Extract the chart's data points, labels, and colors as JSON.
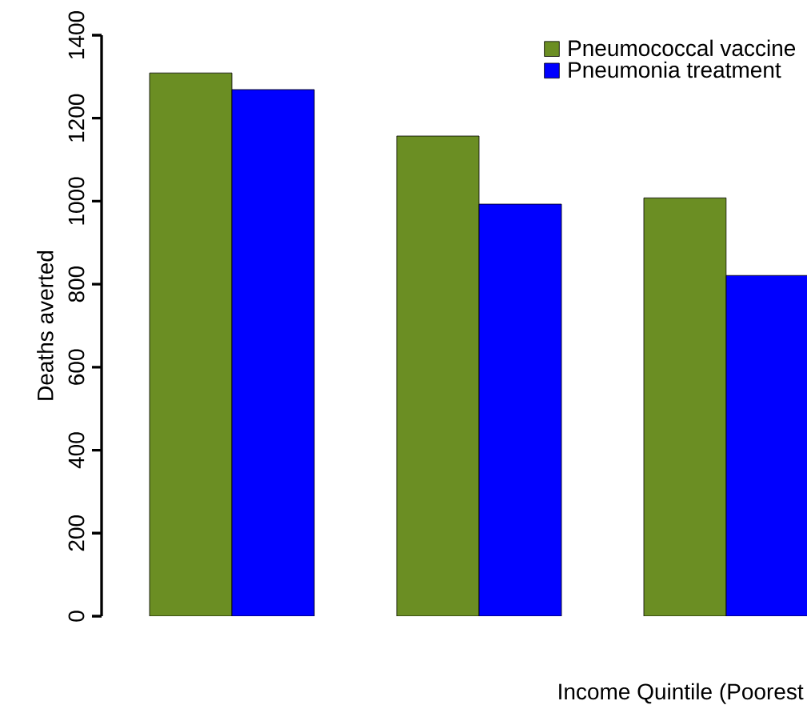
{
  "chart_data": {
    "type": "bar",
    "xlabel": "Income Quintile (Poorest",
    "ylabel": "Deaths averted",
    "categories": [
      null,
      null,
      null
    ],
    "series": [
      {
        "name": "Pneumococcal vaccine",
        "color": "#6b8e23",
        "values": [
          1309,
          1157,
          1008
        ]
      },
      {
        "name": "Pneumonia treatment",
        "color": "#0000ff",
        "values": [
          1269,
          993,
          821
        ]
      }
    ],
    "ylim": [
      0,
      1400
    ],
    "yticks": [
      0,
      200,
      400,
      600,
      800,
      1000,
      1200,
      1400
    ],
    "legend": "top right"
  }
}
